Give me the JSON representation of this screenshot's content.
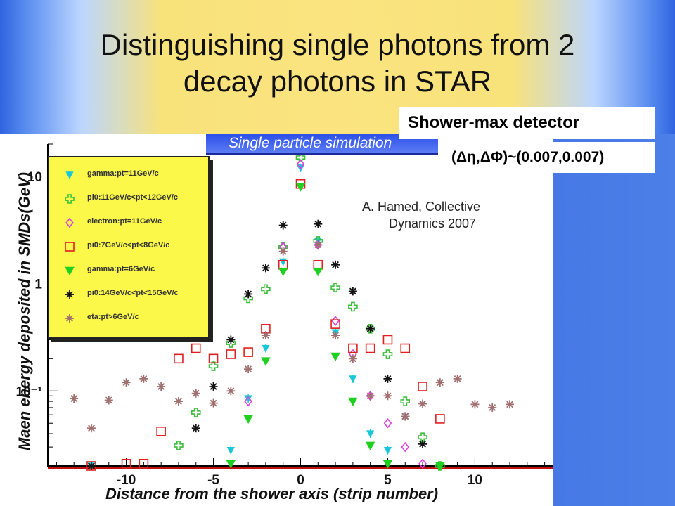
{
  "slide": {
    "title_line1": "Distinguishing single photons from 2",
    "title_line2": "decay photons in STAR",
    "detector_label": "Shower-max detector",
    "resolution_label": "(Δη,ΔΦ)~(0.007,0.007)",
    "credit_line1": "A.  Hamed, Collective",
    "credit_line2": "     Dynamics 2007",
    "colors": {
      "title_band": "#fbe480",
      "side_band": "#2f64e0"
    }
  },
  "chart_data": {
    "type": "scatter",
    "title": "Single particle simulation",
    "xlabel": "Distance from the shower axis (strip number)",
    "ylabel": "Maen energy deposited in SMDs(GeV)",
    "xlim": [
      -14.5,
      14.5
    ],
    "ylim": [
      0.02,
      20
    ],
    "yscale": "log",
    "x_ticks": [
      -10,
      -5,
      0,
      5,
      10
    ],
    "x_tick_labels": [
      "-10",
      "-5",
      "0",
      "5",
      "10"
    ],
    "y_ticks": [
      10,
      1,
      0.1
    ],
    "y_tick_labels": [
      "10",
      "1",
      "10⁻¹"
    ],
    "legend_position": "top-left",
    "series": [
      {
        "name": "gamma:pt=11GeV/c",
        "marker": "tri-down-star",
        "color": "#18c8d8",
        "points": [
          [
            -12,
            0.02
          ],
          [
            -4,
            0.028
          ],
          [
            -3,
            0.085
          ],
          [
            -2,
            0.25
          ],
          [
            -1,
            1.6
          ],
          [
            0,
            12
          ],
          [
            1,
            2.5
          ],
          [
            2,
            0.35
          ],
          [
            3,
            0.13
          ],
          [
            4,
            0.04
          ],
          [
            5,
            0.028
          ]
        ]
      },
      {
        "name": "pi0:11GeV/c<pt<12GeV/c",
        "marker": "cross",
        "color": "#3cbf3c",
        "points": [
          [
            -7,
            0.031
          ],
          [
            -6,
            0.063
          ],
          [
            -5,
            0.17
          ],
          [
            -4,
            0.28
          ],
          [
            -3,
            0.73
          ],
          [
            -2,
            0.89
          ],
          [
            -1,
            2.2
          ],
          [
            0,
            15
          ],
          [
            1,
            2.5
          ],
          [
            2,
            0.92
          ],
          [
            3,
            0.61
          ],
          [
            4,
            0.38
          ],
          [
            5,
            0.22
          ],
          [
            6,
            0.08
          ],
          [
            7,
            0.037
          ],
          [
            8,
            0.02
          ]
        ]
      },
      {
        "name": "electron:pt=11GeV/c",
        "marker": "diamond",
        "color": "#e040e0",
        "points": [
          [
            -3,
            0.08
          ],
          [
            -1,
            2.2
          ],
          [
            0,
            13
          ],
          [
            1,
            2.3
          ],
          [
            2,
            0.45
          ],
          [
            3,
            0.22
          ],
          [
            4,
            0.09
          ],
          [
            5,
            0.05
          ],
          [
            6,
            0.03
          ],
          [
            7,
            0.021
          ]
        ]
      },
      {
        "name": "pi0:7GeV/c<pt<8GeV/c",
        "marker": "square",
        "color": "#e02020",
        "points": [
          [
            -12,
            0.02
          ],
          [
            -10,
            0.021
          ],
          [
            -9,
            0.021
          ],
          [
            -8,
            0.042
          ],
          [
            -7,
            0.2
          ],
          [
            -6,
            0.25
          ],
          [
            -5,
            0.2
          ],
          [
            -4,
            0.22
          ],
          [
            -3,
            0.23
          ],
          [
            -2,
            0.38
          ],
          [
            -1,
            1.5
          ],
          [
            0,
            8.5
          ],
          [
            1,
            1.5
          ],
          [
            2,
            0.42
          ],
          [
            3,
            0.25
          ],
          [
            4,
            0.25
          ],
          [
            5,
            0.3
          ],
          [
            6,
            0.25
          ],
          [
            7,
            0.11
          ],
          [
            8,
            0.055
          ]
        ]
      },
      {
        "name": "gamma:pt=6GeV/c",
        "marker": "tri-down",
        "color": "#20d020",
        "points": [
          [
            -4,
            0.021
          ],
          [
            -3,
            0.055
          ],
          [
            -2,
            0.19
          ],
          [
            -1,
            1.3
          ],
          [
            0,
            8
          ],
          [
            1,
            1.3
          ],
          [
            2,
            0.21
          ],
          [
            3,
            0.08
          ],
          [
            4,
            0.031
          ],
          [
            5,
            0.021
          ],
          [
            8,
            0.02
          ]
        ]
      },
      {
        "name": "pi0:14GeV/c<pt<15GeV/c",
        "marker": "asterisk",
        "color": "#111111",
        "points": [
          [
            -12,
            0.02
          ],
          [
            -6,
            0.045
          ],
          [
            -5,
            0.11
          ],
          [
            -4,
            0.3
          ],
          [
            -3,
            0.8
          ],
          [
            -2,
            1.4
          ],
          [
            -1,
            3.5
          ],
          [
            0,
            18
          ],
          [
            1,
            3.6
          ],
          [
            2,
            1.5
          ],
          [
            3,
            0.85
          ],
          [
            4,
            0.38
          ],
          [
            5,
            0.13
          ],
          [
            6,
            0.058
          ],
          [
            7,
            0.032
          ]
        ]
      },
      {
        "name": "eta:pt>6GeV/c",
        "marker": "asterisk",
        "color": "#a07070",
        "points": [
          [
            -13,
            0.085
          ],
          [
            -12,
            0.045
          ],
          [
            -11,
            0.082
          ],
          [
            -10,
            0.12
          ],
          [
            -9,
            0.13
          ],
          [
            -8,
            0.11
          ],
          [
            -7,
            0.08
          ],
          [
            -6,
            0.095
          ],
          [
            -5,
            0.077
          ],
          [
            -4,
            0.1
          ],
          [
            -3,
            0.16
          ],
          [
            -2,
            0.33
          ],
          [
            -1,
            2.0
          ],
          [
            0,
            17
          ],
          [
            1,
            2.3
          ],
          [
            2,
            0.33
          ],
          [
            3,
            0.2
          ],
          [
            4,
            0.09
          ],
          [
            5,
            0.09
          ],
          [
            6,
            0.058
          ],
          [
            7,
            0.076
          ],
          [
            8,
            0.12
          ],
          [
            9,
            0.13
          ],
          [
            10,
            0.075
          ],
          [
            11,
            0.07
          ],
          [
            12,
            0.075
          ]
        ]
      }
    ]
  }
}
